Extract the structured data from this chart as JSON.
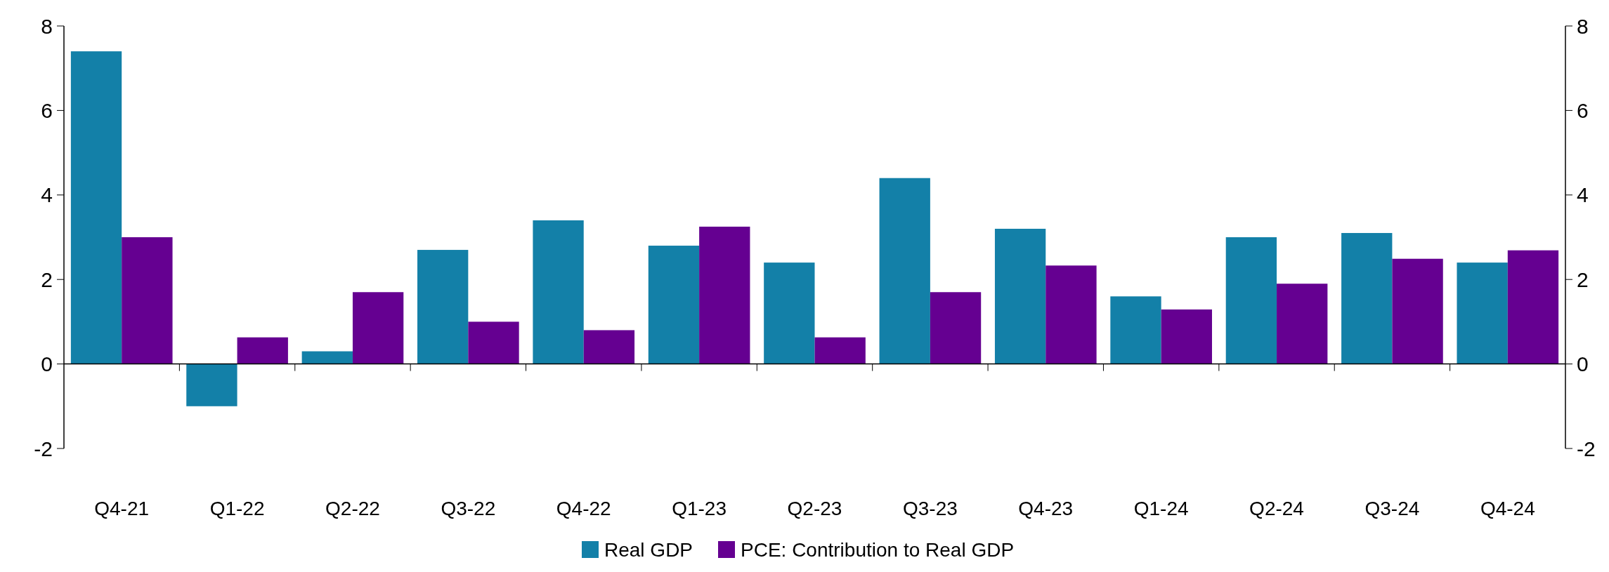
{
  "chart_data": {
    "type": "bar",
    "categories": [
      "Q4-21",
      "Q1-22",
      "Q2-22",
      "Q3-22",
      "Q4-22",
      "Q1-23",
      "Q2-23",
      "Q3-23",
      "Q4-23",
      "Q1-24",
      "Q2-24",
      "Q3-24",
      "Q4-24"
    ],
    "series": [
      {
        "name": "Real GDP",
        "color": "#1380a8",
        "values": [
          7.4,
          -1.0,
          0.3,
          2.7,
          3.4,
          2.8,
          2.4,
          4.4,
          3.2,
          1.6,
          3.0,
          3.1,
          2.4
        ]
      },
      {
        "name": "PCE: Contribution to Real GDP",
        "color": "#650091",
        "values": [
          3.0,
          0.63,
          1.7,
          1.0,
          0.8,
          3.25,
          0.63,
          1.7,
          2.33,
          1.29,
          1.9,
          2.49,
          2.69
        ]
      }
    ],
    "ylim": [
      -2,
      8
    ],
    "yticks": [
      -2,
      0,
      2,
      4,
      6,
      8
    ],
    "y2lim": [
      -2,
      8
    ],
    "y2ticks": [
      -2,
      0,
      2,
      4,
      6,
      8
    ],
    "legend": "bottom"
  }
}
